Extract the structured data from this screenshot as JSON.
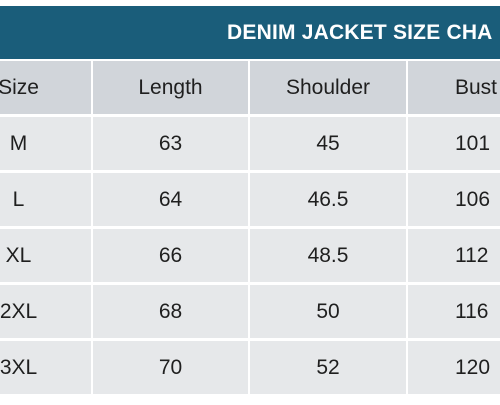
{
  "title": "DENIM JACKET SIZE CHA",
  "headers": [
    "Size",
    "Length",
    "Shoulder",
    "Bust"
  ],
  "rows": [
    [
      "M",
      "63",
      "45",
      "101"
    ],
    [
      "L",
      "64",
      "46.5",
      "106"
    ],
    [
      "XL",
      "66",
      "48.5",
      "112"
    ],
    [
      "2XL",
      "68",
      "50",
      "116"
    ],
    [
      "3XL",
      "70",
      "52",
      "120"
    ]
  ],
  "colors": {
    "title_bar": "#1a5d7a",
    "title_text": "#ffffff",
    "header_cell": "#d1d5da",
    "body_cell": "#e6e8ea",
    "grid_lines": "#ffffff"
  }
}
